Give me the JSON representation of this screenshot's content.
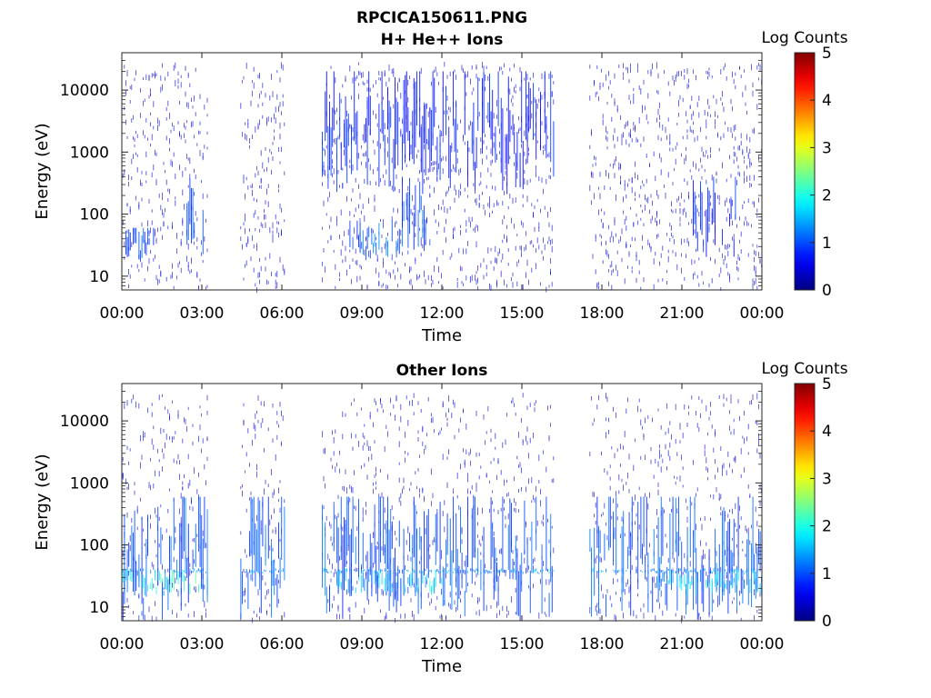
{
  "chart_data": [
    {
      "type": "heatmap",
      "title": "RPCICA150611.PNG",
      "subtitle": "H+ He++ Ions",
      "xlabel": "Time",
      "ylabel": "Energy (eV)",
      "x_ticks": [
        "00:00",
        "03:00",
        "06:00",
        "09:00",
        "12:00",
        "15:00",
        "18:00",
        "21:00",
        "00:00"
      ],
      "xlim_hours": [
        0,
        24
      ],
      "y_scale": "log",
      "y_ticks": [
        10,
        100,
        1000,
        10000
      ],
      "y_tick_labels": [
        "10",
        "100",
        "1000",
        "10000"
      ],
      "ylim": [
        6,
        40000
      ],
      "colorbar": {
        "label": "Log Counts",
        "range": [
          0,
          5
        ],
        "ticks": [
          "0",
          "1",
          "2",
          "3",
          "4",
          "5"
        ],
        "colormap": "jet"
      },
      "activity_intervals_hours": [
        [
          0.0,
          3.2
        ],
        [
          4.4,
          6.1
        ],
        [
          7.5,
          16.2
        ],
        [
          17.5,
          24.0
        ]
      ],
      "notable_features": [
        {
          "hours": [
            0.0,
            1.2
          ],
          "energy_eV": [
            15,
            60
          ],
          "log_counts": 0.8
        },
        {
          "hours": [
            2.4,
            3.2
          ],
          "energy_eV": [
            20,
            400
          ],
          "log_counts": 0.9
        },
        {
          "hours": [
            8.5,
            10.5
          ],
          "energy_eV": [
            18,
            80
          ],
          "log_counts": 1.0
        },
        {
          "hours": [
            10.5,
            11.5
          ],
          "energy_eV": [
            20,
            400
          ],
          "log_counts": 0.9
        },
        {
          "hours": [
            7.5,
            16.2
          ],
          "energy_eV": [
            200,
            20000
          ],
          "log_counts": 0.6
        },
        {
          "hours": [
            21.4,
            23.0
          ],
          "energy_eV": [
            20,
            400
          ],
          "log_counts": 0.7
        }
      ]
    },
    {
      "type": "heatmap",
      "title": "Other Ions",
      "xlabel": "Time",
      "ylabel": "Energy (eV)",
      "x_ticks": [
        "00:00",
        "03:00",
        "06:00",
        "09:00",
        "12:00",
        "15:00",
        "18:00",
        "21:00",
        "00:00"
      ],
      "xlim_hours": [
        0,
        24
      ],
      "y_scale": "log",
      "y_ticks": [
        10,
        100,
        1000,
        10000
      ],
      "y_tick_labels": [
        "10",
        "100",
        "1000",
        "10000"
      ],
      "ylim": [
        6,
        40000
      ],
      "colorbar": {
        "label": "Log Counts",
        "range": [
          0,
          5
        ],
        "ticks": [
          "0",
          "1",
          "2",
          "3",
          "4",
          "5"
        ],
        "colormap": "jet"
      },
      "activity_intervals_hours": [
        [
          0.0,
          3.2
        ],
        [
          4.4,
          6.1
        ],
        [
          7.5,
          16.2
        ],
        [
          17.5,
          24.0
        ]
      ],
      "notable_features": [
        {
          "hours": [
            0.0,
            24.0
          ],
          "energy_eV": [
            34,
            42
          ],
          "log_counts": 1.2
        },
        {
          "hours": [
            0.0,
            3.2
          ],
          "energy_eV": [
            15,
            40
          ],
          "log_counts": 1.8
        },
        {
          "hours": [
            8.0,
            12.0
          ],
          "energy_eV": [
            15,
            40
          ],
          "log_counts": 1.6
        },
        {
          "hours": [
            0.0,
            24.0
          ],
          "energy_eV": [
            6,
            600
          ],
          "log_counts": 0.9
        },
        {
          "hours": [
            20.0,
            24.0
          ],
          "energy_eV": [
            15,
            40
          ],
          "log_counts": 1.5
        }
      ]
    }
  ]
}
